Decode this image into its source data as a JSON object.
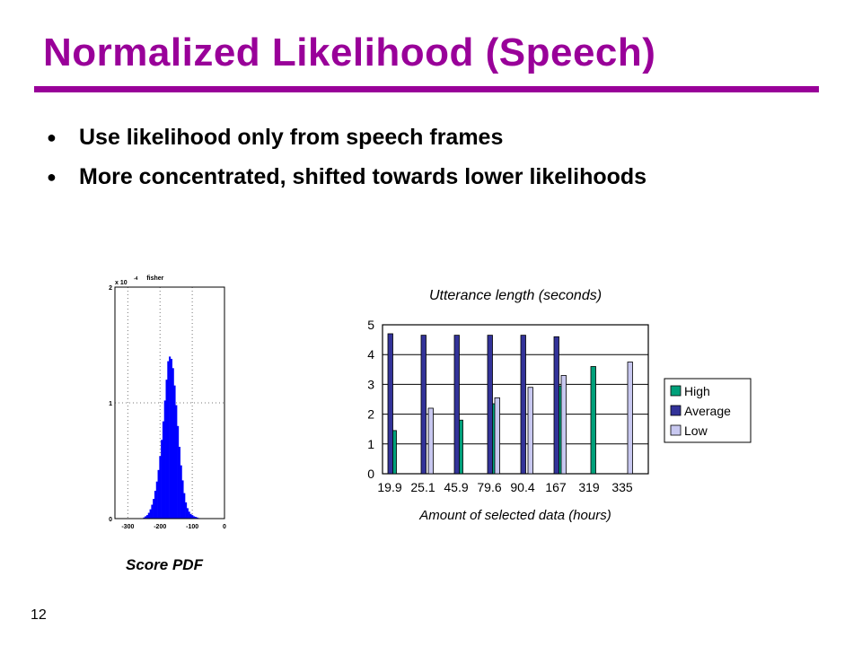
{
  "slide": {
    "title": "Normalized Likelihood (Speech)",
    "bullets": [
      "Use likelihood only from speech frames",
      "More concentrated, shifted towards lower likelihoods"
    ],
    "bullet_marker": "●",
    "caption": "Score PDF",
    "page_number": "12",
    "colors": {
      "title": "#990099",
      "high": "#00A07A",
      "average": "#333399",
      "low": "#C8C8F0",
      "histogram": "#0000FF"
    }
  },
  "chart_data": [
    {
      "type": "bar",
      "title": "fisher",
      "xlabel": "",
      "ylabel": "",
      "scale_label": "x 10",
      "scale_exponent": "-4",
      "xlim": [
        -340,
        0
      ],
      "ylim": [
        0,
        2
      ],
      "x_ticks": [
        -300,
        -200,
        -100,
        0
      ],
      "y_ticks": [
        0,
        1,
        2
      ],
      "grid": true,
      "histogram": {
        "x": [
          -250,
          -245,
          -240,
          -235,
          -230,
          -225,
          -220,
          -215,
          -210,
          -205,
          -200,
          -195,
          -190,
          -185,
          -180,
          -175,
          -170,
          -165,
          -160,
          -155,
          -150,
          -145,
          -140,
          -135,
          -130,
          -125,
          -120,
          -115,
          -110,
          -105,
          -100,
          -95,
          -90,
          -85,
          -80
        ],
        "values": [
          0.01,
          0.02,
          0.03,
          0.05,
          0.08,
          0.12,
          0.17,
          0.24,
          0.32,
          0.42,
          0.54,
          0.68,
          0.84,
          1.02,
          1.2,
          1.36,
          1.4,
          1.38,
          1.3,
          1.15,
          0.98,
          0.8,
          0.62,
          0.46,
          0.33,
          0.22,
          0.14,
          0.09,
          0.06,
          0.04,
          0.03,
          0.02,
          0.015,
          0.01,
          0.005
        ]
      }
    },
    {
      "type": "bar",
      "title": "Utterance length (seconds)",
      "xlabel": "Amount of selected data (hours)",
      "ylabel": "",
      "categories": [
        "19.9",
        "25.1",
        "45.9",
        "79.6",
        "90.4",
        "167",
        "319",
        "335"
      ],
      "ylim": [
        0,
        5
      ],
      "y_ticks": [
        0,
        1,
        2,
        3,
        4,
        5
      ],
      "grid": true,
      "legend_position": "right",
      "series": [
        {
          "name": "High",
          "values": [
            1.45,
            null,
            1.8,
            2.35,
            null,
            2.95,
            3.6,
            null
          ]
        },
        {
          "name": "Average",
          "values": [
            4.7,
            4.65,
            4.65,
            4.65,
            4.65,
            4.6,
            null,
            null
          ]
        },
        {
          "name": "Low",
          "values": [
            null,
            2.2,
            null,
            2.55,
            2.9,
            3.3,
            null,
            3.75
          ]
        }
      ]
    }
  ]
}
